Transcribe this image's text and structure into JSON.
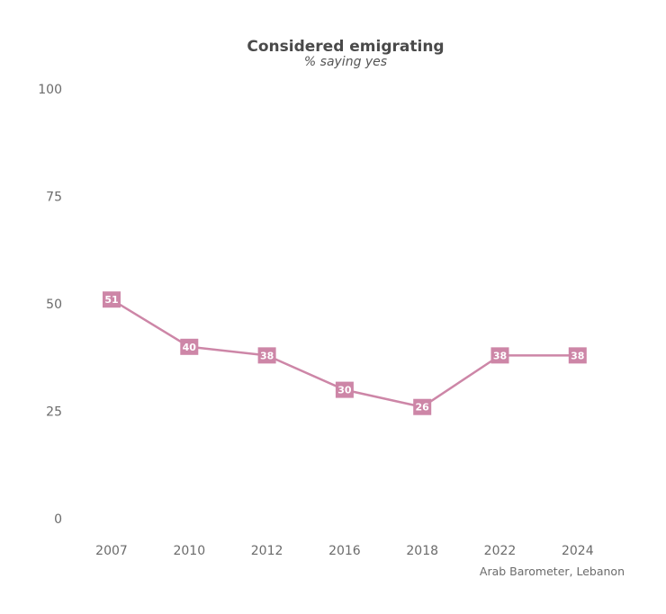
{
  "chart_data": {
    "type": "line",
    "title": "Considered emigrating",
    "subtitle": "% saying yes",
    "categories": [
      "2007",
      "2010",
      "2012",
      "2016",
      "2018",
      "2022",
      "2024"
    ],
    "series": [
      {
        "values": [
          51,
          40,
          38,
          30,
          26,
          38,
          38
        ]
      }
    ],
    "ylim": [
      0,
      100
    ],
    "yticks": [
      0,
      25,
      50,
      75,
      100
    ],
    "grid": false,
    "line_color": "#cd86a7",
    "marker_shape": "square",
    "label_color": "#ffffff",
    "source": "Arab Barometer, Lebanon"
  }
}
